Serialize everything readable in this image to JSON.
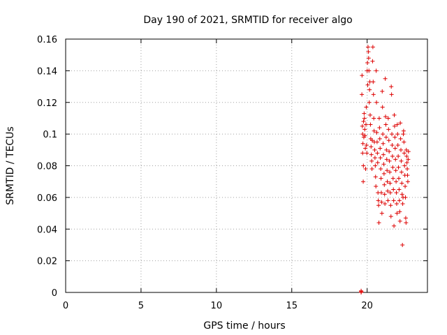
{
  "chart_data": {
    "type": "scatter",
    "title": "Day 190 of 2021, SRMTID for receiver algo",
    "xlabel": "GPS time / hours",
    "ylabel": "SRMTID / TECUs",
    "xlim": [
      0,
      24
    ],
    "ylim": [
      0,
      0.16
    ],
    "xticks": [
      0,
      5,
      10,
      15,
      20
    ],
    "yticks": [
      0,
      0.02,
      0.04,
      0.06,
      0.08,
      0.1,
      0.12,
      0.14,
      0.16
    ],
    "xtick_labels": [
      "0",
      "5",
      "10",
      "15",
      "20"
    ],
    "ytick_labels": [
      "0",
      "0.02",
      "0.04",
      "0.06",
      "0.08",
      "0.1",
      "0.12",
      "0.14",
      "0.16"
    ],
    "grid": true,
    "marker": "+",
    "color": "#dd0000",
    "series": [
      {
        "points": [
          [
            19.6,
            0.0
          ],
          [
            19.6,
            0.001
          ],
          [
            19.61,
            0.0005
          ],
          [
            19.65,
            0.125
          ],
          [
            19.66,
            0.137
          ],
          [
            19.68,
            0.105
          ],
          [
            19.7,
            0.1
          ],
          [
            19.7,
            0.088
          ],
          [
            19.72,
            0.094
          ],
          [
            19.74,
            0.07
          ],
          [
            19.75,
            0.08
          ],
          [
            19.76,
            0.108
          ],
          [
            19.78,
            0.098
          ],
          [
            19.8,
            0.113
          ],
          [
            19.82,
            0.11
          ],
          [
            19.84,
            0.103
          ],
          [
            19.86,
            0.099
          ],
          [
            19.88,
            0.091
          ],
          [
            19.9,
            0.078
          ],
          [
            19.92,
            0.106
          ],
          [
            19.94,
            0.117
          ],
          [
            19.96,
            0.093
          ],
          [
            19.98,
            0.088
          ],
          [
            20.0,
            0.14
          ],
          [
            20.02,
            0.145
          ],
          [
            20.04,
            0.131
          ],
          [
            20.06,
            0.155
          ],
          [
            20.08,
            0.152
          ],
          [
            20.1,
            0.148
          ],
          [
            20.12,
            0.14
          ],
          [
            20.14,
            0.12
          ],
          [
            20.16,
            0.128
          ],
          [
            20.18,
            0.133
          ],
          [
            20.2,
            0.112
          ],
          [
            20.22,
            0.106
          ],
          [
            20.24,
            0.097
          ],
          [
            20.26,
            0.092
          ],
          [
            20.28,
            0.087
          ],
          [
            20.3,
            0.083
          ],
          [
            20.32,
            0.078
          ],
          [
            20.34,
            0.096
          ],
          [
            20.36,
            0.146
          ],
          [
            20.38,
            0.155
          ],
          [
            20.4,
            0.133
          ],
          [
            20.42,
            0.125
          ],
          [
            20.44,
            0.11
          ],
          [
            20.46,
            0.102
          ],
          [
            20.48,
            0.095
          ],
          [
            20.5,
            0.09
          ],
          [
            20.52,
            0.085
          ],
          [
            20.54,
            0.08
          ],
          [
            20.56,
            0.073
          ],
          [
            20.58,
            0.067
          ],
          [
            20.6,
            0.14
          ],
          [
            20.62,
            0.12
          ],
          [
            20.64,
            0.101
          ],
          [
            20.66,
            0.095
          ],
          [
            20.68,
            0.088
          ],
          [
            20.7,
            0.082
          ],
          [
            20.72,
            0.063
          ],
          [
            20.74,
            0.058
          ],
          [
            20.76,
            0.055
          ],
          [
            20.78,
            0.044
          ],
          [
            20.8,
            0.11
          ],
          [
            20.82,
            0.104
          ],
          [
            20.84,
            0.097
          ],
          [
            20.86,
            0.091
          ],
          [
            20.88,
            0.085
          ],
          [
            20.9,
            0.078
          ],
          [
            20.92,
            0.072
          ],
          [
            20.94,
            0.063
          ],
          [
            20.96,
            0.057
          ],
          [
            20.98,
            0.05
          ],
          [
            21.0,
            0.127
          ],
          [
            21.02,
            0.117
          ],
          [
            21.04,
            0.1
          ],
          [
            21.06,
            0.094
          ],
          [
            21.08,
            0.087
          ],
          [
            21.1,
            0.081
          ],
          [
            21.12,
            0.075
          ],
          [
            21.14,
            0.068
          ],
          [
            21.16,
            0.062
          ],
          [
            21.18,
            0.056
          ],
          [
            21.2,
            0.135
          ],
          [
            21.22,
            0.111
          ],
          [
            21.24,
            0.106
          ],
          [
            21.26,
            0.098
          ],
          [
            21.28,
            0.09
          ],
          [
            21.3,
            0.084
          ],
          [
            21.32,
            0.077
          ],
          [
            21.34,
            0.07
          ],
          [
            21.36,
            0.064
          ],
          [
            21.38,
            0.058
          ],
          [
            21.4,
            0.11
          ],
          [
            21.42,
            0.103
          ],
          [
            21.44,
            0.096
          ],
          [
            21.46,
            0.089
          ],
          [
            21.48,
            0.083
          ],
          [
            21.5,
            0.076
          ],
          [
            21.52,
            0.069
          ],
          [
            21.54,
            0.063
          ],
          [
            21.56,
            0.055
          ],
          [
            21.58,
            0.048
          ],
          [
            21.6,
            0.13
          ],
          [
            21.62,
            0.125
          ],
          [
            21.64,
            0.1
          ],
          [
            21.66,
            0.093
          ],
          [
            21.68,
            0.086
          ],
          [
            21.7,
            0.079
          ],
          [
            21.72,
            0.072
          ],
          [
            21.74,
            0.065
          ],
          [
            21.76,
            0.058
          ],
          [
            21.78,
            0.042
          ],
          [
            21.8,
            0.112
          ],
          [
            21.82,
            0.105
          ],
          [
            21.84,
            0.098
          ],
          [
            21.86,
            0.091
          ],
          [
            21.88,
            0.084
          ],
          [
            21.9,
            0.077
          ],
          [
            21.92,
            0.07
          ],
          [
            21.94,
            0.063
          ],
          [
            21.96,
            0.056
          ],
          [
            21.98,
            0.05
          ],
          [
            22.0,
            0.106
          ],
          [
            22.02,
            0.1
          ],
          [
            22.04,
            0.093
          ],
          [
            22.06,
            0.086
          ],
          [
            22.08,
            0.079
          ],
          [
            22.1,
            0.072
          ],
          [
            22.12,
            0.065
          ],
          [
            22.14,
            0.058
          ],
          [
            22.16,
            0.051
          ],
          [
            22.18,
            0.045
          ],
          [
            22.2,
            0.107
          ],
          [
            22.22,
            0.097
          ],
          [
            22.24,
            0.09
          ],
          [
            22.26,
            0.083
          ],
          [
            22.28,
            0.076
          ],
          [
            22.3,
            0.069
          ],
          [
            22.32,
            0.062
          ],
          [
            22.34,
            0.03
          ],
          [
            22.36,
            0.056
          ],
          [
            22.38,
            0.06
          ],
          [
            22.4,
            0.1
          ],
          [
            22.42,
            0.102
          ],
          [
            22.44,
            0.095
          ],
          [
            22.46,
            0.088
          ],
          [
            22.48,
            0.08
          ],
          [
            22.5,
            0.074
          ],
          [
            22.52,
            0.067
          ],
          [
            22.54,
            0.06
          ],
          [
            22.56,
            0.047
          ],
          [
            22.58,
            0.044
          ],
          [
            22.6,
            0.09
          ],
          [
            22.62,
            0.086
          ],
          [
            22.64,
            0.082
          ],
          [
            22.66,
            0.078
          ],
          [
            22.68,
            0.074
          ],
          [
            22.7,
            0.07
          ],
          [
            22.72,
            0.084
          ],
          [
            22.74,
            0.089
          ]
        ]
      }
    ]
  }
}
